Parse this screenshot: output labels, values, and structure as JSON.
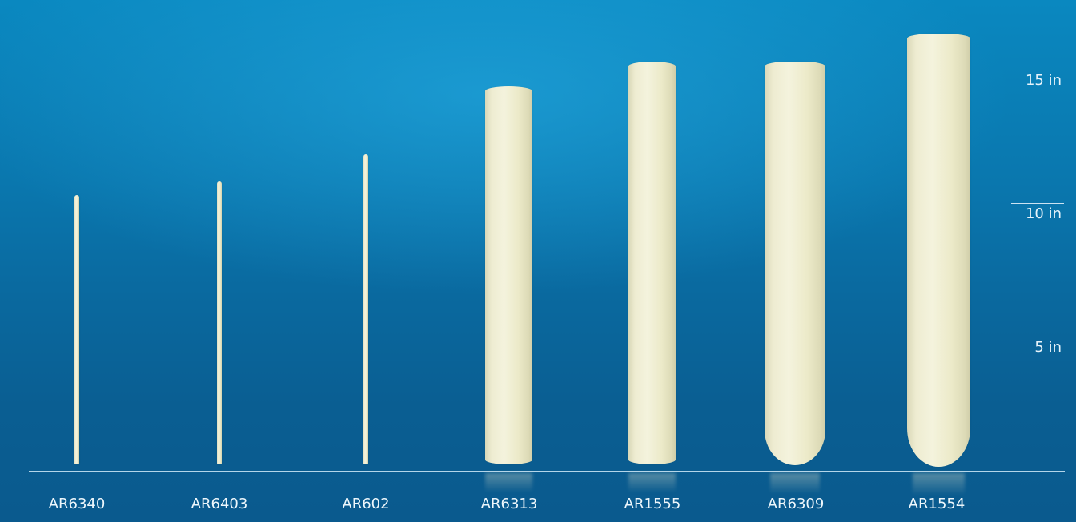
{
  "scale": {
    "ticks": [
      {
        "label": "15 in",
        "inches": 15
      },
      {
        "label": "10 in",
        "inches": 10
      },
      {
        "label": "5 in",
        "inches": 5
      }
    ]
  },
  "products": [
    {
      "code": "AR6340",
      "type": "rod"
    },
    {
      "code": "AR6403",
      "type": "rod"
    },
    {
      "code": "AR602",
      "type": "rod"
    },
    {
      "code": "AR6313",
      "type": "flat-bottom tube"
    },
    {
      "code": "AR1555",
      "type": "flat-bottom tube"
    },
    {
      "code": "AR6309",
      "type": "round-bottom tube"
    },
    {
      "code": "AR1554",
      "type": "round-bottom tube"
    }
  ],
  "colors": {
    "background": "#0a77ae",
    "tube": "#eeecd1",
    "text": "#eef7fc"
  }
}
